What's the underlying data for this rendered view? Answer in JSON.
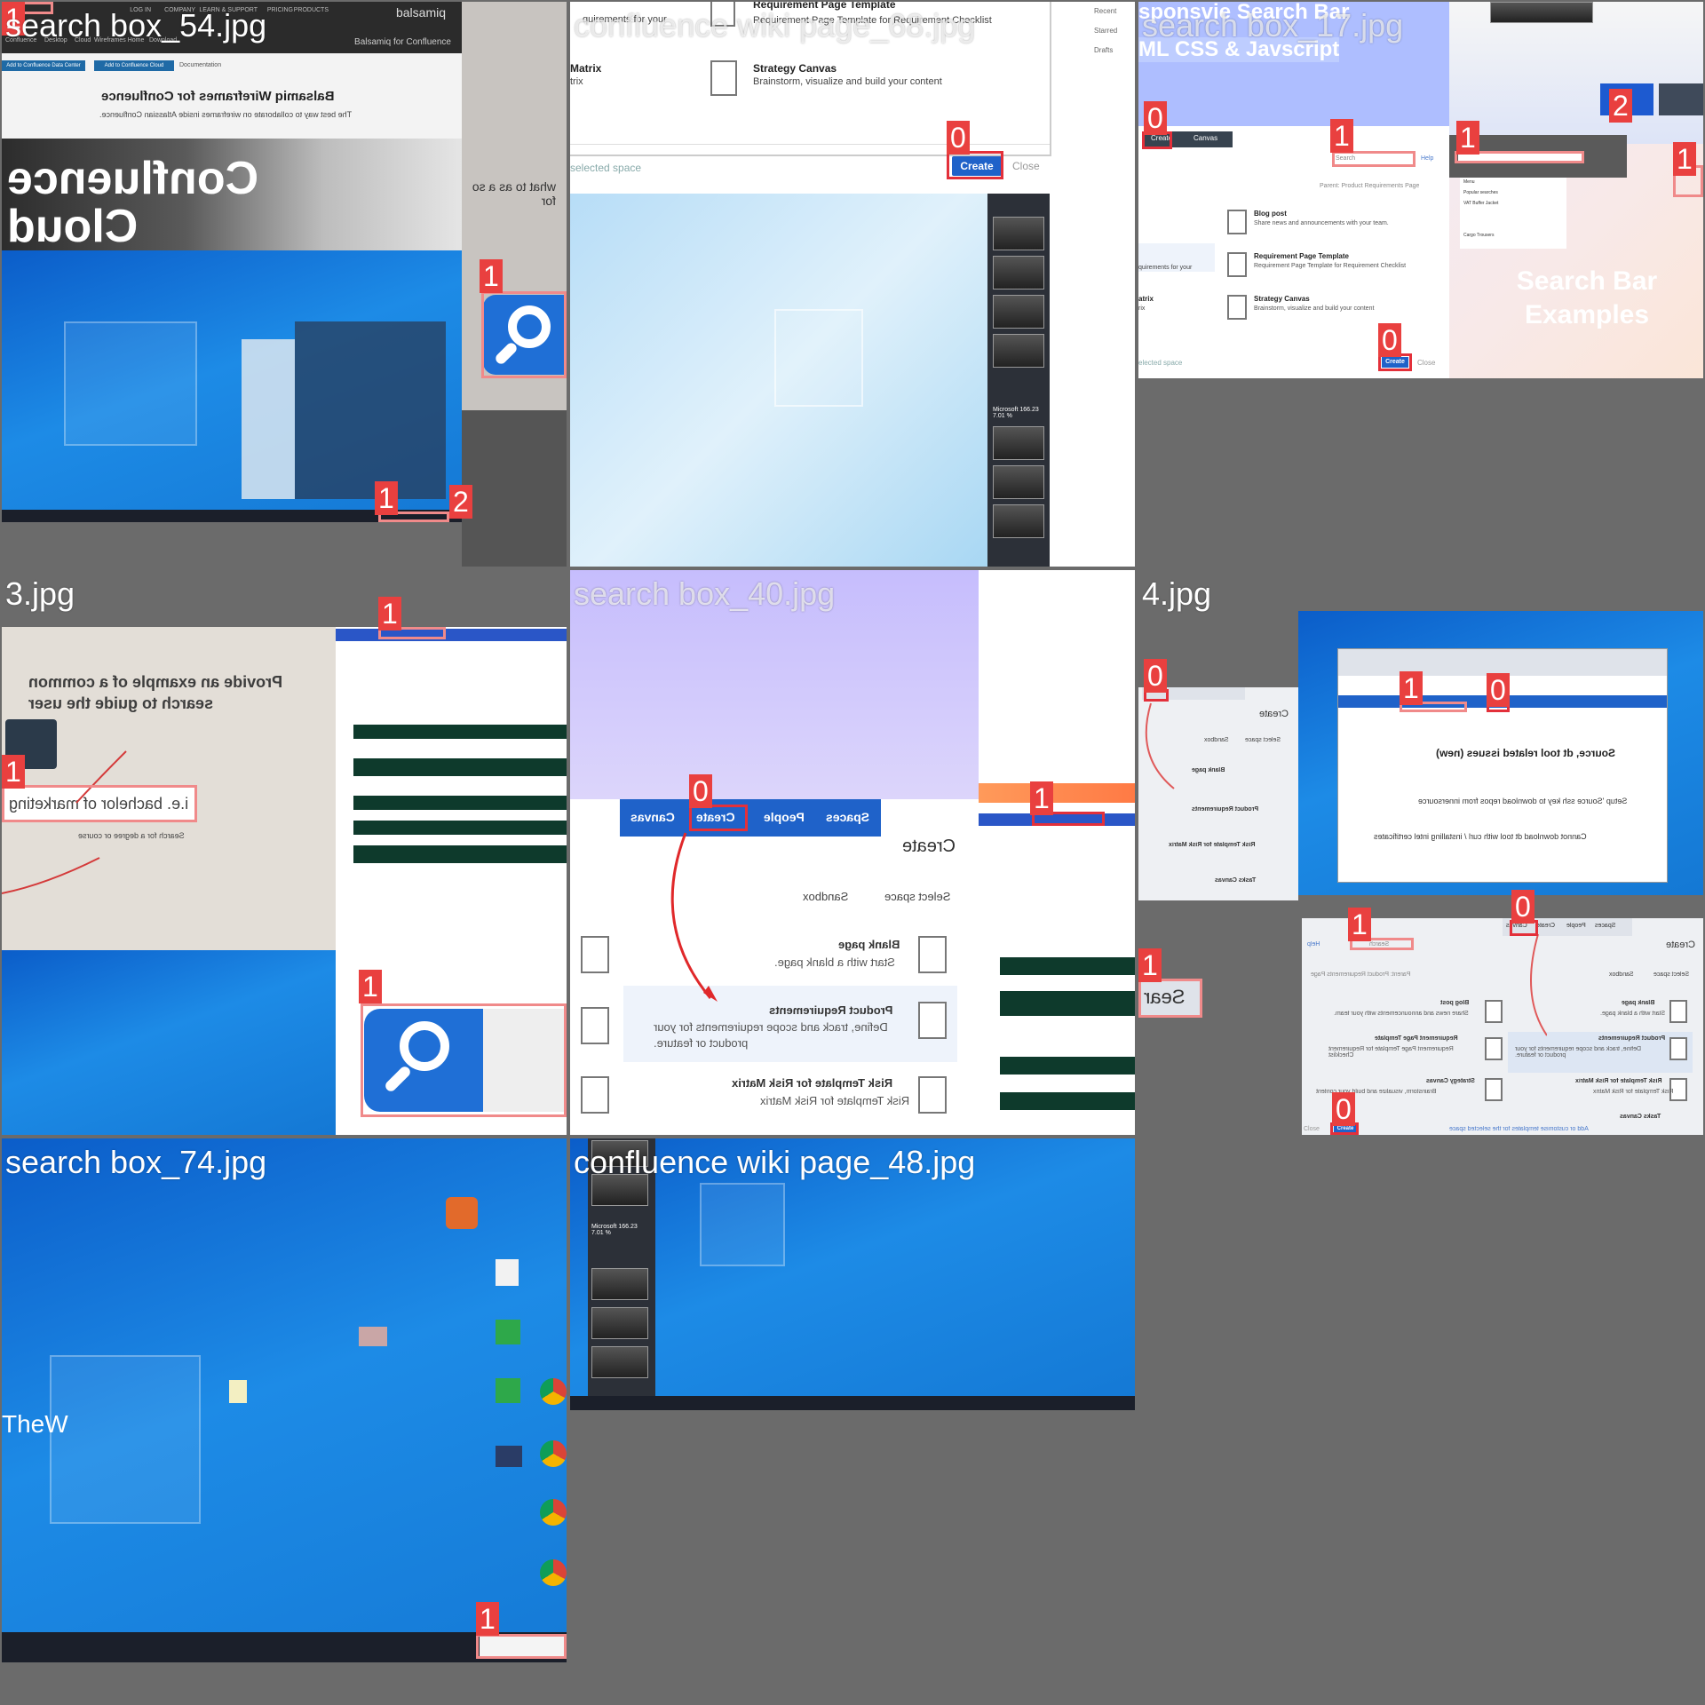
{
  "tiles": [
    {
      "title": "search box_54.jpg",
      "header_brand": "balsamiq",
      "top_nav": [
        "PRODUCTS",
        "PRICING",
        "LEARN & SUPPORT",
        "COMPANY",
        "LOG IN"
      ],
      "breadcrumb": "Balsamiq for Confluence",
      "sub_nav": [
        "Confluence",
        "Desktop",
        "Cloud",
        "Wireframes Home",
        "Download"
      ],
      "actions": [
        "Add to Confluence Data Center",
        "Add to Confluence Cloud",
        "Documentation"
      ],
      "page_heading": "Balsamiq Wireframes for Confluence",
      "page_sub": "The best way to collaborate on wireframes inside Atlassian Confluence.",
      "hero_text": [
        "Confluence",
        "Cloud"
      ],
      "side_text": "what to as a so for",
      "labels": [
        "1",
        "1",
        "2"
      ]
    },
    {
      "title": "confluence wiki page_68.jpg",
      "items": [
        {
          "name": "Requirement Page Template",
          "desc": "Requirement Page Template for Requirement Checklist"
        },
        {
          "name": "Strategy Canvas",
          "desc": "Brainstorm, visualize and build your content"
        }
      ],
      "left_items": [
        "quirements for your",
        "Matrix",
        "trix"
      ],
      "footer_text": "selected space",
      "create_label": "Create",
      "close_label": "Close",
      "side_menu": [
        "Recent",
        "Starred",
        "Drafts"
      ],
      "thumb_caption": "Microsoft 166.23 7.01 %",
      "labels": [
        "0"
      ]
    },
    {
      "title": "search box_17.jpg",
      "heading_lines": [
        "sponsvie Search Bar",
        "ML CSS & Javscript"
      ],
      "nav": [
        "Create",
        "Canvas"
      ],
      "search_placeholder": "Search",
      "help_label": "Help",
      "parent_label": "Parent: Product Requirements Page",
      "dialog_items": [
        {
          "name": "Blog post",
          "desc": "Share news and announcements with your team."
        },
        {
          "name": "Requirement Page Template",
          "desc": "Requirement Page Template for Requirement Checklist"
        },
        {
          "name": "Strategy Canvas",
          "desc": "Brainstorm, visualize and build your content"
        }
      ],
      "left_items": [
        "quirements for your",
        "atrix",
        "rix"
      ],
      "footer_text": "elected space",
      "create_label": "Create",
      "close_label": "Close",
      "promo_text": [
        "Search Bar",
        "Examples"
      ],
      "dropdown_items": [
        "Menu",
        "Popular searches",
        "VAT Buffer Jacket",
        "Cargo Trousers"
      ],
      "labels": [
        "0",
        "1",
        "1",
        "2",
        "1",
        "0"
      ]
    },
    {
      "title": "3.jpg",
      "prompt_lines": [
        "Provide an example of a common",
        "search to guide the user"
      ],
      "input_text": "i.e. bachelor of marketing",
      "helper_text": "Search for a degree or course",
      "labels": [
        "1",
        "1",
        "1"
      ]
    },
    {
      "title": "search box_40.jpg",
      "nav": [
        "Spaces",
        "People",
        "Create",
        "Canvas"
      ],
      "heading": "Create",
      "select_space": "Select space",
      "space_value": "Sandbox",
      "items": [
        {
          "name": "Blank page",
          "desc": "Start with a blank page."
        },
        {
          "name": "Product Requirements",
          "desc": "Define, track and scope requirements for your product or feature."
        },
        {
          "name": "Risk Template for Risk Matrix",
          "desc": "Risk Template for Risk Matrix"
        }
      ],
      "labels": [
        "0",
        "1"
      ]
    },
    {
      "title": "4.jpg",
      "window_heading": "Source, dt tool related issues (new)",
      "window_lines": [
        "Setup 'Source ssh key to download repos from innersource",
        "Cannot download dt tool with curl / installing intel certificates"
      ],
      "panel_heading": "Create",
      "panel_nav": [
        "Spaces",
        "People",
        "Create",
        "Canvas"
      ],
      "panel_items": [
        {
          "name": "Blank page",
          "desc": "Start with a blank page."
        },
        {
          "name": "Product Requirements",
          "desc": "Define, track and scope requirements for your product or feature."
        },
        {
          "name": "Risk Template for Risk Matrix",
          "desc": "Risk Template for Risk Matrix"
        },
        {
          "name": "Tasks Canvas",
          "desc": ""
        }
      ],
      "blog_items": [
        {
          "name": "Blog post",
          "desc": "Share news and announcements with your team."
        },
        {
          "name": "Requirement Page Template",
          "desc": "Requirement Page Template for Requirement Checklist"
        },
        {
          "name": "Strategy Canvas",
          "desc": "Brainstorm, visualize and build your content"
        }
      ],
      "search_text": "Search",
      "help_text": "Help",
      "sandbox": "Sandbox",
      "select_space": "Select space",
      "parent": "Parent: Product Requirements Page",
      "search_crop": "Sear",
      "footer": "Add or customise templates for the selected space",
      "close_label": "Close",
      "create_label": "Create",
      "labels": [
        "0",
        "1",
        "0",
        "1",
        "0",
        "1",
        "0"
      ]
    },
    {
      "title": "search box_74.jpg",
      "desktop_logo": "TheW",
      "labels": [
        "1"
      ]
    },
    {
      "title": "confluence wiki page_48.jpg",
      "thumb_caption": "Microsoft 166.23 7.01 %",
      "labels": []
    }
  ],
  "colors": {
    "label_bg": "#e9403f",
    "box_border": "#f08a8a",
    "confluence_blue": "#1f62c9",
    "win_blue": "#1478d4",
    "background": "#6b6b6b"
  }
}
